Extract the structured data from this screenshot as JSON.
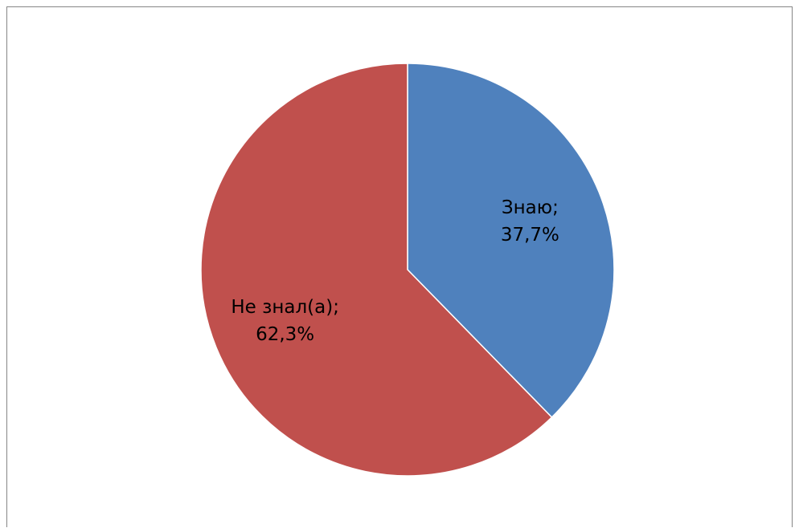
{
  "chart_data": {
    "type": "pie",
    "title": "",
    "slices": [
      {
        "label": "Знаю",
        "value": 37.7,
        "value_text": "37,7%",
        "color": "#4F81BD"
      },
      {
        "label": "Не знал(а)",
        "value": 62.3,
        "value_text": "62,3%",
        "color": "#C0504D"
      }
    ],
    "start_angle": "12 o'clock",
    "direction": "clockwise",
    "separator": ";",
    "slice_border_color": "#FFFFFF",
    "legend": "none",
    "label_position": "inside"
  }
}
